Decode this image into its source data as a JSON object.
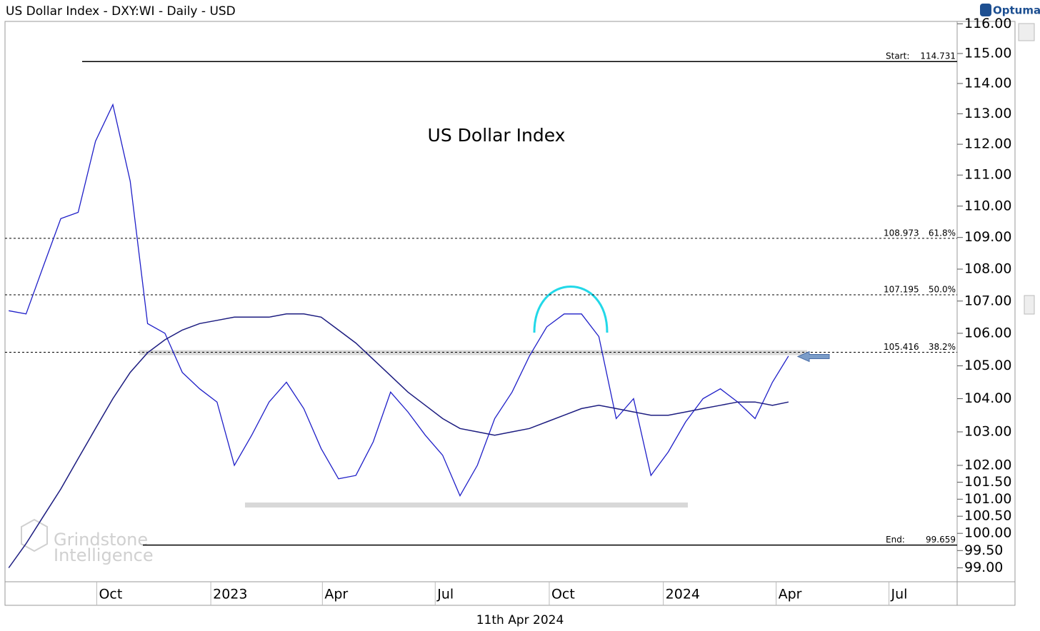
{
  "chart_data": {
    "type": "line",
    "title": "US Dollar Index - DXY:WI - Daily - USD",
    "label": "US Dollar Index",
    "brand": "Optuma",
    "watermark": [
      "Grindstone",
      "Intelligence"
    ],
    "footer": "11th Apr 2024",
    "log_scale": true,
    "xlim": [
      "2022-07-19",
      "2024-08-25"
    ],
    "xticks": [
      {
        "value": "2022-10-01",
        "label": "Oct"
      },
      {
        "value": "2023-01-01",
        "label": "2023"
      },
      {
        "value": "2023-04-01",
        "label": "Apr"
      },
      {
        "value": "2023-07-01",
        "label": "Jul"
      },
      {
        "value": "2023-10-01",
        "label": "Oct"
      },
      {
        "value": "2024-01-01",
        "label": "2024"
      },
      {
        "value": "2024-04-01",
        "label": "Apr"
      },
      {
        "value": "2024-07-01",
        "label": "Jul"
      }
    ],
    "ylim": [
      98.6,
      116.08
    ],
    "yticks": [
      {
        "value": 99,
        "label": "99.00"
      },
      {
        "value": 99.5,
        "label": "99.50"
      },
      {
        "value": 100,
        "label": "100.00"
      },
      {
        "value": 100.5,
        "label": "100.50"
      },
      {
        "value": 101,
        "label": "101.00"
      },
      {
        "value": 101.5,
        "label": "101.50"
      },
      {
        "value": 102,
        "label": "102.00"
      },
      {
        "value": 103,
        "label": "103.00"
      },
      {
        "value": 104,
        "label": "104.00"
      },
      {
        "value": 105,
        "label": "105.00"
      },
      {
        "value": 106,
        "label": "106.00"
      },
      {
        "value": 107,
        "label": "107.00"
      },
      {
        "value": 108,
        "label": "108.00"
      },
      {
        "value": 109,
        "label": "109.00"
      },
      {
        "value": 110,
        "label": "110.00"
      },
      {
        "value": 111,
        "label": "111.00"
      },
      {
        "value": 112,
        "label": "112.00"
      },
      {
        "value": 113,
        "label": "113.00"
      },
      {
        "value": 114,
        "label": "114.00"
      },
      {
        "value": 115,
        "label": "115.00"
      },
      {
        "value": 116,
        "label": "116.00"
      }
    ],
    "x": [
      "2022-07-22",
      "2022-08-05",
      "2022-08-19",
      "2022-09-02",
      "2022-09-16",
      "2022-09-30",
      "2022-10-14",
      "2022-10-28",
      "2022-11-11",
      "2022-11-25",
      "2022-12-09",
      "2022-12-23",
      "2023-01-06",
      "2023-01-20",
      "2023-02-03",
      "2023-02-17",
      "2023-03-03",
      "2023-03-17",
      "2023-03-31",
      "2023-04-14",
      "2023-04-28",
      "2023-05-12",
      "2023-05-26",
      "2023-06-09",
      "2023-06-23",
      "2023-07-07",
      "2023-07-21",
      "2023-08-04",
      "2023-08-18",
      "2023-09-01",
      "2023-09-15",
      "2023-09-29",
      "2023-10-13",
      "2023-10-27",
      "2023-11-10",
      "2023-11-24",
      "2023-12-08",
      "2023-12-22",
      "2024-01-05",
      "2024-01-19",
      "2024-02-02",
      "2024-02-16",
      "2024-03-01",
      "2024-03-15",
      "2024-03-29",
      "2024-04-11"
    ],
    "series": [
      {
        "color": "#1f1fc8",
        "values": [
          106.7,
          106.6,
          108.1,
          109.6,
          109.8,
          112.1,
          113.3,
          110.8,
          106.3,
          106.0,
          104.8,
          104.3,
          103.9,
          102.0,
          102.9,
          103.9,
          104.5,
          103.7,
          102.5,
          101.6,
          101.7,
          102.7,
          104.2,
          103.6,
          102.9,
          102.3,
          101.1,
          102.0,
          103.4,
          104.2,
          105.3,
          106.2,
          106.6,
          106.6,
          105.9,
          103.4,
          104.0,
          101.7,
          102.4,
          103.3,
          104.0,
          104.3,
          103.9,
          103.4,
          104.5,
          105.3
        ]
      },
      {
        "color": "#1c1c80",
        "values": [
          99.0,
          99.7,
          100.5,
          101.3,
          102.2,
          103.1,
          104.0,
          104.8,
          105.4,
          105.8,
          106.1,
          106.3,
          106.4,
          106.5,
          106.5,
          106.5,
          106.6,
          106.6,
          106.5,
          106.1,
          105.7,
          105.2,
          104.7,
          104.2,
          103.8,
          103.4,
          103.1,
          103.0,
          102.9,
          103.0,
          103.1,
          103.3,
          103.5,
          103.7,
          103.8,
          103.7,
          103.6,
          103.5,
          103.5,
          103.6,
          103.7,
          103.8,
          103.9,
          103.9,
          103.8,
          103.9
        ]
      }
    ],
    "levels": [
      {
        "name": "Start:",
        "price": 114.731
      },
      {
        "price": 108.973,
        "pct": "61.8%"
      },
      {
        "price": 107.195,
        "pct": "50.0%"
      },
      {
        "price": 105.416,
        "pct": "38.2%"
      },
      {
        "name": "End:",
        "price": 99.659
      }
    ]
  }
}
